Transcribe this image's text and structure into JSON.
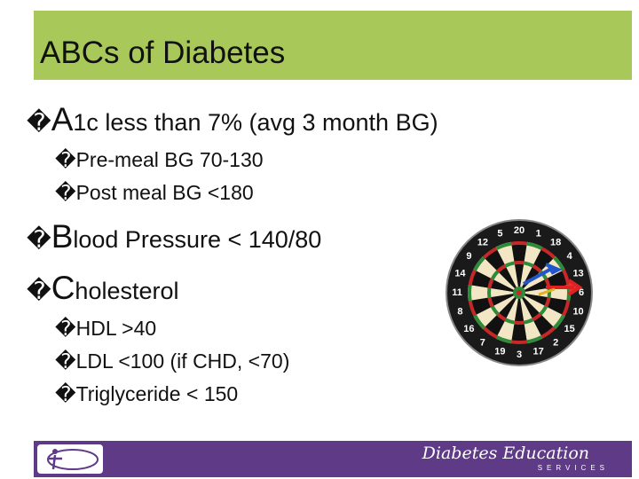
{
  "header": {
    "title": "ABCs of Diabetes"
  },
  "bullets": [
    {
      "marker": "�",
      "lead": "A",
      "text": "1c less than 7% (avg 3 month BG)",
      "sub": [
        {
          "marker": "�",
          "text": "Pre-meal BG 70-130"
        },
        {
          "marker": "�",
          "text": "Post meal BG <180"
        }
      ]
    },
    {
      "marker": "�",
      "lead": "B",
      "text": "lood Pressure < 140/80",
      "sub": []
    },
    {
      "marker": "�",
      "lead": "C",
      "text": "holesterol",
      "sub": [
        {
          "marker": "�",
          "text": "HDL >40"
        },
        {
          "marker": "�",
          "text": "LDL <100 (if CHD, <70)"
        },
        {
          "marker": "�",
          "text": "Triglyceride < 150"
        }
      ]
    }
  ],
  "dartboard": {
    "numbers": [
      "20",
      "1",
      "18",
      "4",
      "13",
      "6",
      "10",
      "15",
      "2",
      "17",
      "3",
      "19",
      "7",
      "16",
      "8",
      "11",
      "14",
      "9",
      "12",
      "5"
    ]
  },
  "footer": {
    "brand": "Diabetes Education",
    "tagline": "SERVICES"
  }
}
